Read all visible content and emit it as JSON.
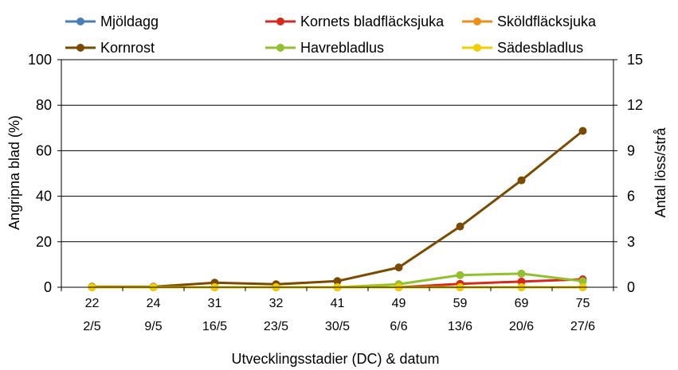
{
  "chart_data": {
    "type": "line",
    "xlabel": "Utvecklingsstadier (DC) & datum",
    "ylabel": "Angripna blad (%)",
    "y2label": "Antal löss/strå",
    "categories": [
      "22",
      "24",
      "31",
      "32",
      "41",
      "49",
      "59",
      "69",
      "75"
    ],
    "dates": [
      "2/5",
      "9/5",
      "16/5",
      "23/5",
      "30/5",
      "6/6",
      "13/6",
      "20/6",
      "27/6"
    ],
    "ylim": [
      0,
      100
    ],
    "yticks": [
      "0",
      "20",
      "40",
      "60",
      "80",
      "100"
    ],
    "y2lim": [
      0,
      15
    ],
    "y2ticks": [
      "0",
      "3",
      "6",
      "9",
      "12",
      "15"
    ],
    "grid": true,
    "legend_position": "top",
    "series": [
      {
        "name": "Mjöldagg",
        "axis": "left",
        "color": "#4a7ebb",
        "values": [
          0,
          0,
          0,
          0,
          0,
          0,
          0,
          0,
          0
        ]
      },
      {
        "name": "Kornets bladfläcksjuka",
        "axis": "left",
        "color": "#d42a1e",
        "values": [
          0,
          0,
          0,
          0,
          0,
          0,
          1.5,
          2.5,
          3.5
        ]
      },
      {
        "name": "Sköldfläcksjuka",
        "axis": "left",
        "color": "#e8901a",
        "values": [
          0,
          0,
          0,
          0,
          0,
          0,
          0,
          0,
          0
        ]
      },
      {
        "name": "Kornrost",
        "axis": "left",
        "color": "#7a4a00",
        "values": [
          0.2,
          0.2,
          2,
          1.3,
          2.7,
          8.7,
          26.7,
          47,
          68.7
        ]
      },
      {
        "name": "Havrebladlus",
        "axis": "right",
        "color": "#93c02e",
        "values": [
          0,
          0,
          0,
          0,
          0,
          0.2,
          0.8,
          0.9,
          0.4
        ]
      },
      {
        "name": "Sädesbladlus",
        "axis": "right",
        "color": "#f0cc00",
        "values": [
          0,
          0,
          0,
          0,
          0,
          0,
          0,
          0,
          0
        ]
      }
    ]
  }
}
